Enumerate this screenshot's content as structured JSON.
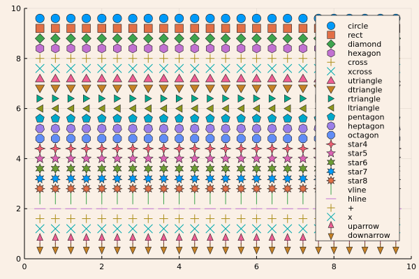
{
  "chart_data": {
    "type": "scatter",
    "title": "",
    "xlabel": "",
    "ylabel": "",
    "xlim": [
      0,
      10
    ],
    "ylim": [
      0,
      10
    ],
    "xticks": [
      "0",
      "2",
      "4",
      "6",
      "8",
      "10"
    ],
    "yticks": [
      "0",
      "2",
      "4",
      "6",
      "8",
      "10"
    ],
    "grid": true,
    "legend_position": "top-right",
    "background": "#faf0e6",
    "x": [
      0.4,
      0.8,
      1.2,
      1.6,
      2.0,
      2.4,
      2.8,
      3.2,
      3.6,
      4.0,
      4.4,
      4.8,
      5.2,
      5.6,
      6.0,
      6.4,
      6.8,
      7.2,
      7.6,
      8.0,
      8.4,
      8.8,
      9.2,
      9.6
    ],
    "series": [
      {
        "name": "circle",
        "marker": "circle",
        "color": "#009af9",
        "y": 9.6
      },
      {
        "name": "rect",
        "marker": "rect",
        "color": "#e26f46",
        "y": 9.2
      },
      {
        "name": "diamond",
        "marker": "diamond",
        "color": "#3da44d",
        "y": 8.8
      },
      {
        "name": "hexagon",
        "marker": "hexagon",
        "color": "#c271d2",
        "y": 8.4
      },
      {
        "name": "cross",
        "marker": "cross",
        "color": "#ac8e18",
        "y": 8.0
      },
      {
        "name": "xcross",
        "marker": "xcross",
        "color": "#00a9ad",
        "y": 7.6
      },
      {
        "name": "utriangle",
        "marker": "utriangle",
        "color": "#ed5e93",
        "y": 7.2
      },
      {
        "name": "dtriangle",
        "marker": "dtriangle",
        "color": "#c68125",
        "y": 6.8
      },
      {
        "name": "rtriangle",
        "marker": "rtriangle",
        "color": "#00a98d",
        "y": 6.4
      },
      {
        "name": "ltriangle",
        "marker": "ltriangle",
        "color": "#8e971d",
        "y": 6.0
      },
      {
        "name": "pentagon",
        "marker": "pentagon",
        "color": "#00a8cb",
        "y": 5.6
      },
      {
        "name": "heptagon",
        "marker": "heptagon",
        "color": "#9b7fe9",
        "y": 5.2
      },
      {
        "name": "octagon",
        "marker": "octagon",
        "color": "#618df6",
        "y": 4.8
      },
      {
        "name": "star4",
        "marker": "star4",
        "color": "#f05f73",
        "y": 4.4
      },
      {
        "name": "star5",
        "marker": "star5",
        "color": "#dd64b5",
        "y": 4.0
      },
      {
        "name": "star6",
        "marker": "star6",
        "color": "#6b9d32",
        "y": 3.6
      },
      {
        "name": "star7",
        "marker": "star7",
        "color": "#009af9",
        "y": 3.2
      },
      {
        "name": "star8",
        "marker": "star8",
        "color": "#e26f46",
        "y": 2.8
      },
      {
        "name": "vline",
        "marker": "vline",
        "color": "#3da44d",
        "y": 2.4
      },
      {
        "name": "hline",
        "marker": "hline",
        "color": "#c271d2",
        "y": 2.0
      },
      {
        "name": "+",
        "marker": "plus",
        "color": "#ac8e18",
        "y": 1.6
      },
      {
        "name": "x",
        "marker": "x",
        "color": "#00a9ad",
        "y": 1.2
      },
      {
        "name": "uparrow",
        "marker": "uparrow",
        "color": "#ed5e93",
        "y": 0.8
      },
      {
        "name": "downarrow",
        "marker": "downarrow",
        "color": "#c68125",
        "y": 0.4
      }
    ]
  }
}
